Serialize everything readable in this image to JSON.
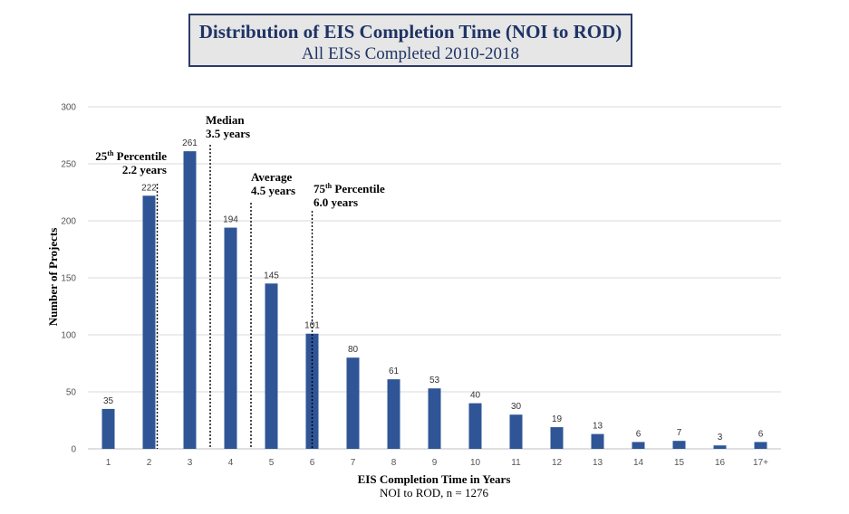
{
  "chart_data": {
    "type": "bar",
    "title": "Distribution of EIS Completion Time (NOI to ROD)",
    "subtitle": "All EISs Completed 2010-2018",
    "categories": [
      "1",
      "2",
      "3",
      "4",
      "5",
      "6",
      "7",
      "8",
      "9",
      "10",
      "11",
      "12",
      "13",
      "14",
      "15",
      "16",
      "17+"
    ],
    "values": [
      35,
      222,
      261,
      194,
      145,
      101,
      80,
      61,
      53,
      40,
      30,
      19,
      13,
      6,
      7,
      3,
      6
    ],
    "xlabel": "EIS Completion Time in Years",
    "xlabel_note": "NOI to ROD, n = 1276",
    "ylabel": "Number of Projects",
    "ylim": [
      0,
      300
    ],
    "yticks": [
      0,
      50,
      100,
      150,
      200,
      250,
      300
    ],
    "grid": true,
    "bar_color": "#2f5597",
    "annotations": [
      {
        "id": "p25",
        "x": 2.2,
        "lines": [
          {
            "pre": "25",
            "sup": "th",
            "post": " Percentile"
          },
          {
            "pre": "2.2 years",
            "sup": "",
            "post": ""
          }
        ]
      },
      {
        "id": "median",
        "x": 3.5,
        "lines": [
          {
            "pre": "Median",
            "sup": "",
            "post": ""
          },
          {
            "pre": "3.5 years",
            "sup": "",
            "post": ""
          }
        ]
      },
      {
        "id": "average",
        "x": 4.5,
        "lines": [
          {
            "pre": "Average",
            "sup": "",
            "post": ""
          },
          {
            "pre": "4.5 years",
            "sup": "",
            "post": ""
          }
        ]
      },
      {
        "id": "p75",
        "x": 6.0,
        "lines": [
          {
            "pre": "75",
            "sup": "th",
            "post": " Percentile"
          },
          {
            "pre": "6.0 years",
            "sup": "",
            "post": ""
          }
        ]
      }
    ]
  }
}
